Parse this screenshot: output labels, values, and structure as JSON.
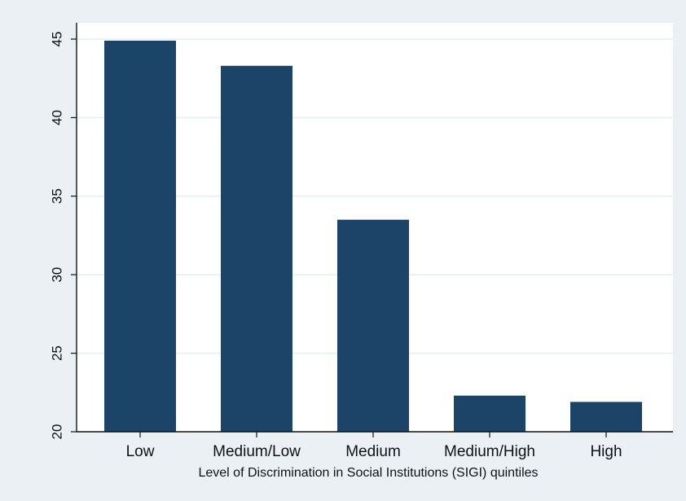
{
  "chart_data": {
    "type": "bar",
    "title": "",
    "xlabel": "Level of Discrimination in Social Institutions (SIGI) quintiles",
    "ylabel": "",
    "categories": [
      "Low",
      "Medium/Low",
      "Medium",
      "Medium/High",
      "High"
    ],
    "values": [
      44.9,
      43.3,
      33.5,
      22.3,
      21.9
    ],
    "ylim": [
      20,
      45
    ],
    "yticks": [
      "20",
      "25",
      "30",
      "35",
      "40",
      "45"
    ],
    "grid": true,
    "legend": "none",
    "colors": {
      "bar": "#1c4368",
      "plot_background": "#ffffff",
      "page_background": "#eaf0f3",
      "gridline": "#e7edf1"
    }
  }
}
